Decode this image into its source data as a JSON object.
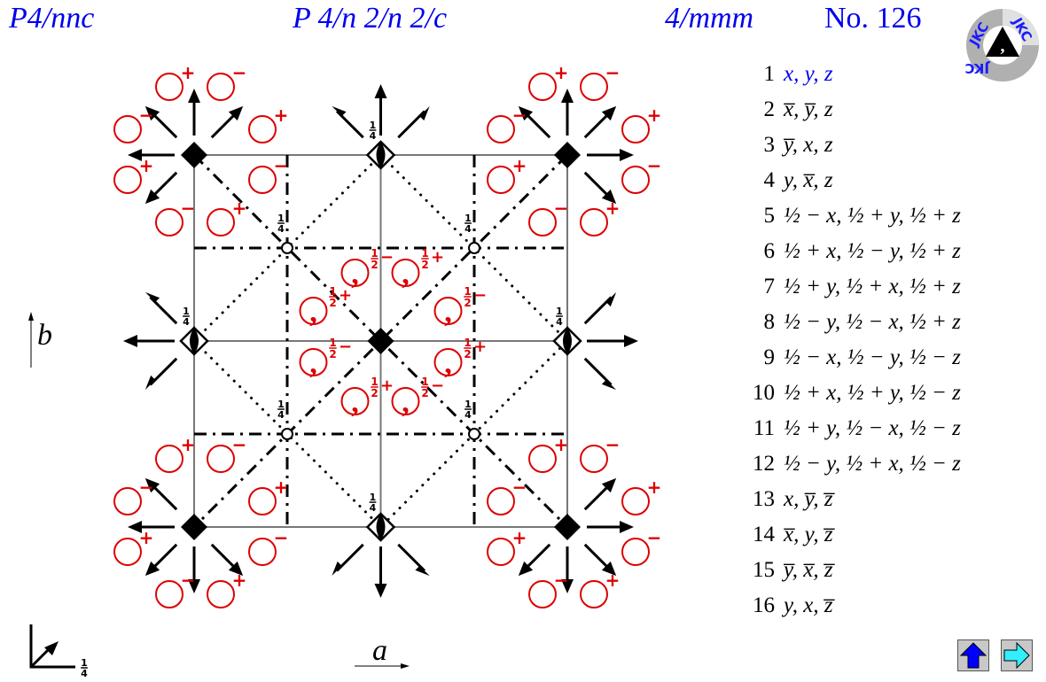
{
  "header": {
    "short_symbol": "P4/nnc",
    "full_symbol": "P 4/n 2/n 2/c",
    "point_group": "4/mmm",
    "number": "No. 126"
  },
  "logo": {
    "text": "JKC"
  },
  "axes": {
    "a": "a",
    "b": "b",
    "origin_height": {
      "num": "1",
      "den": "4"
    }
  },
  "diagram": {
    "quarter": {
      "num": "1",
      "den": "4"
    },
    "outer_signs": [
      "+",
      "−",
      "−",
      "+",
      "+",
      "−",
      "−",
      "+"
    ],
    "inner_positions": [
      {
        "num": "1",
        "den": "2",
        "sign": "−"
      },
      {
        "num": "1",
        "den": "2",
        "sign": "+"
      },
      {
        "num": "1",
        "den": "2",
        "sign": "+"
      },
      {
        "num": "1",
        "den": "2",
        "sign": "−"
      },
      {
        "num": "1",
        "den": "2",
        "sign": "−"
      },
      {
        "num": "1",
        "den": "2",
        "sign": "+"
      },
      {
        "num": "1",
        "den": "2",
        "sign": "+"
      },
      {
        "num": "1",
        "den": "2",
        "sign": "−"
      }
    ]
  },
  "positions": [
    {
      "n": "1",
      "coord": "x, y, z"
    },
    {
      "n": "2",
      "coord": "x̅, y̅, z"
    },
    {
      "n": "3",
      "coord": "y̅, x, z"
    },
    {
      "n": "4",
      "coord": "y, x̅, z"
    },
    {
      "n": "5",
      "coord": "½ − x, ½ + y, ½ + z"
    },
    {
      "n": "6",
      "coord": "½ + x, ½ − y, ½ + z"
    },
    {
      "n": "7",
      "coord": "½ + y, ½ + x, ½ + z"
    },
    {
      "n": "8",
      "coord": "½ − y, ½ − x, ½ + z"
    },
    {
      "n": "9",
      "coord": "½ − x, ½ − y, ½ − z"
    },
    {
      "n": "10",
      "coord": "½ + x, ½ + y, ½ − z"
    },
    {
      "n": "11",
      "coord": "½ + y, ½ − x, ½ − z"
    },
    {
      "n": "12",
      "coord": "½ − y, ½ + x, ½ − z"
    },
    {
      "n": "13",
      "coord": "x, y̅, z̅"
    },
    {
      "n": "14",
      "coord": "x̅, y, z̅"
    },
    {
      "n": "15",
      "coord": "y̅, x̅, z̅"
    },
    {
      "n": "16",
      "coord": "y, x, z̅"
    }
  ],
  "nav": {
    "up_icon": "up-arrow-icon",
    "next_icon": "right-arrow-icon"
  },
  "colors": {
    "title": "#0000ee",
    "general_position": "#dd0000",
    "grid": "#777777",
    "up_button": "#0000ff",
    "next_button": "#33eeff"
  }
}
